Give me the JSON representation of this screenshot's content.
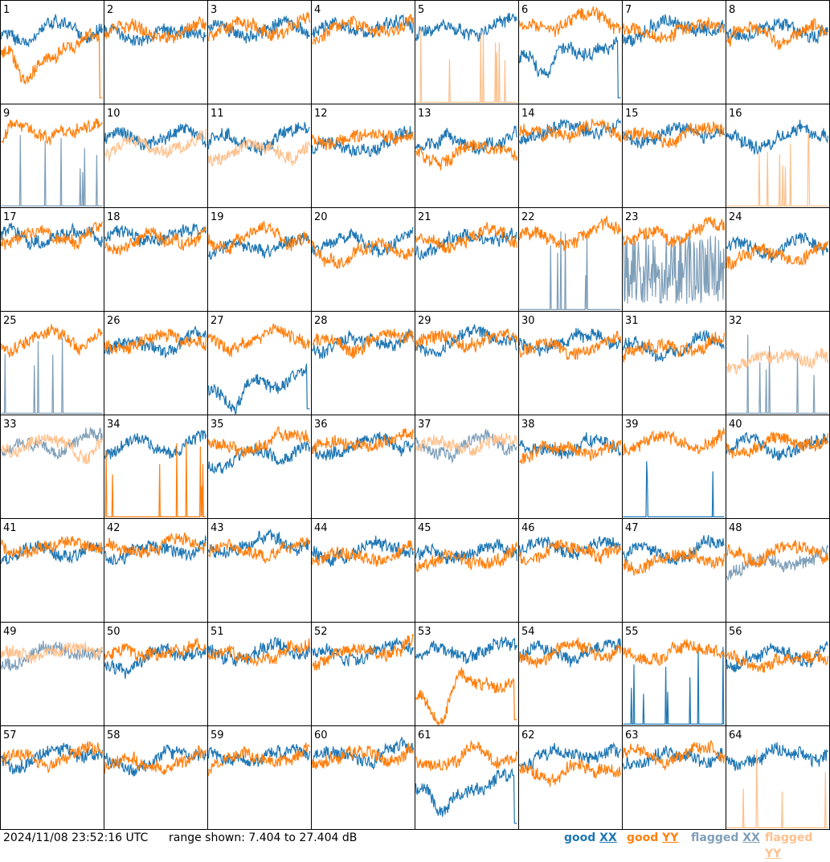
{
  "footer": {
    "timestamp": "2024/11/08 23:52:16 UTC",
    "range_text": "range shown: 7.404 to 27.404 dB"
  },
  "legend": [
    {
      "key": "good_xx",
      "word": "good",
      "pol": "XX",
      "color": "#1f77b4"
    },
    {
      "key": "good_yy",
      "word": "good",
      "pol": "YY",
      "color": "#ff7f0e"
    },
    {
      "key": "flagged_xx",
      "word": "flagged",
      "pol": "XX",
      "color": "#7f9fb9"
    },
    {
      "key": "flagged_yy",
      "word": "flagged",
      "pol": "YY",
      "color": "#ffc08c"
    }
  ],
  "chart_data": {
    "type": "line",
    "layout": {
      "rows": 8,
      "cols": 8
    },
    "ylim": [
      7.404,
      27.404
    ],
    "units": "dB",
    "series_names": [
      "XX",
      "YY"
    ],
    "panels": [
      {
        "n": 1,
        "xx": "good",
        "yy": "good",
        "xx_shape": "wave",
        "yy_shape": "dip",
        "xx_level": 0.72,
        "yy_level": 0.55
      },
      {
        "n": 2,
        "xx": "good",
        "yy": "good",
        "xx_shape": "wave",
        "yy_shape": "wave",
        "xx_level": 0.72,
        "yy_level": 0.72
      },
      {
        "n": 3,
        "xx": "good",
        "yy": "good",
        "xx_shape": "wave",
        "yy_shape": "wave",
        "xx_level": 0.72,
        "yy_level": 0.74
      },
      {
        "n": 4,
        "xx": "good",
        "yy": "good",
        "xx_shape": "wave",
        "yy_shape": "wave",
        "xx_level": 0.74,
        "yy_level": 0.73
      },
      {
        "n": 5,
        "xx": "good",
        "yy": "flagged",
        "xx_shape": "wave",
        "yy_shape": "spikes",
        "xx_level": 0.73,
        "yy_level": 0.0
      },
      {
        "n": 6,
        "xx": "good",
        "yy": "good",
        "xx_shape": "dip",
        "yy_shape": "wave",
        "xx_level": 0.55,
        "yy_level": 0.78
      },
      {
        "n": 7,
        "xx": "good",
        "yy": "good",
        "xx_shape": "wave",
        "yy_shape": "wave",
        "xx_level": 0.72,
        "yy_level": 0.73
      },
      {
        "n": 8,
        "xx": "good",
        "yy": "good",
        "xx_shape": "wave",
        "yy_shape": "wave",
        "xx_level": 0.7,
        "yy_level": 0.67
      },
      {
        "n": 9,
        "xx": "flagged",
        "yy": "good",
        "xx_shape": "spikes",
        "yy_shape": "wave",
        "xx_level": 0.0,
        "yy_level": 0.75
      },
      {
        "n": 10,
        "xx": "good",
        "yy": "flagged",
        "xx_shape": "wave",
        "yy_shape": "wave",
        "xx_level": 0.66,
        "yy_level": 0.58
      },
      {
        "n": 11,
        "xx": "good",
        "yy": "flagged",
        "xx_shape": "wave",
        "yy_shape": "wave",
        "xx_level": 0.66,
        "yy_level": 0.56
      },
      {
        "n": 12,
        "xx": "good",
        "yy": "good",
        "xx_shape": "wave",
        "yy_shape": "wave",
        "xx_level": 0.62,
        "yy_level": 0.7
      },
      {
        "n": 13,
        "xx": "good",
        "yy": "good",
        "xx_shape": "wave",
        "yy_shape": "wave",
        "xx_level": 0.65,
        "yy_level": 0.55
      },
      {
        "n": 14,
        "xx": "good",
        "yy": "good",
        "xx_shape": "wave",
        "yy_shape": "wave",
        "xx_level": 0.74,
        "yy_level": 0.75
      },
      {
        "n": 15,
        "xx": "good",
        "yy": "good",
        "xx_shape": "wave",
        "yy_shape": "wave",
        "xx_level": 0.72,
        "yy_level": 0.72
      },
      {
        "n": 16,
        "xx": "good",
        "yy": "flagged",
        "xx_shape": "wave",
        "yy_shape": "spikes",
        "xx_level": 0.72,
        "yy_level": 0.0
      },
      {
        "n": 17,
        "xx": "good",
        "yy": "good",
        "xx_shape": "wave",
        "yy_shape": "wave",
        "xx_level": 0.72,
        "yy_level": 0.73
      },
      {
        "n": 18,
        "xx": "good",
        "yy": "good",
        "xx_shape": "wave",
        "yy_shape": "wave",
        "xx_level": 0.72,
        "yy_level": 0.72
      },
      {
        "n": 19,
        "xx": "good",
        "yy": "good",
        "xx_shape": "wave",
        "yy_shape": "wave",
        "xx_level": 0.6,
        "yy_level": 0.72
      },
      {
        "n": 20,
        "xx": "good",
        "yy": "good",
        "xx_shape": "wave",
        "yy_shape": "wave",
        "xx_level": 0.68,
        "yy_level": 0.62
      },
      {
        "n": 21,
        "xx": "good",
        "yy": "good",
        "xx_shape": "wave",
        "yy_shape": "wave",
        "xx_level": 0.7,
        "yy_level": 0.72
      },
      {
        "n": 22,
        "xx": "flagged",
        "yy": "good",
        "xx_shape": "spikes",
        "yy_shape": "wave",
        "xx_level": 0.0,
        "yy_level": 0.75
      },
      {
        "n": 23,
        "xx": "flagged",
        "yy": "good",
        "xx_shape": "noise",
        "yy_shape": "wave",
        "xx_level": 0.4,
        "yy_level": 0.75
      },
      {
        "n": 24,
        "xx": "good",
        "yy": "good",
        "xx_shape": "wave",
        "yy_shape": "wave",
        "xx_level": 0.64,
        "yy_level": 0.58
      },
      {
        "n": 25,
        "xx": "flagged",
        "yy": "good",
        "xx_shape": "spikes",
        "yy_shape": "wave",
        "xx_level": 0.0,
        "yy_level": 0.75
      },
      {
        "n": 26,
        "xx": "good",
        "yy": "good",
        "xx_shape": "wave",
        "yy_shape": "wave",
        "xx_level": 0.72,
        "yy_level": 0.73
      },
      {
        "n": 27,
        "xx": "good",
        "yy": "good",
        "xx_shape": "dip",
        "yy_shape": "wave",
        "xx_level": 0.35,
        "yy_level": 0.75
      },
      {
        "n": 28,
        "xx": "good",
        "yy": "good",
        "xx_shape": "wave",
        "yy_shape": "wave",
        "xx_level": 0.72,
        "yy_level": 0.72
      },
      {
        "n": 29,
        "xx": "good",
        "yy": "good",
        "xx_shape": "wave",
        "yy_shape": "wave",
        "xx_level": 0.72,
        "yy_level": 0.72
      },
      {
        "n": 30,
        "xx": "good",
        "yy": "good",
        "xx_shape": "wave",
        "yy_shape": "wave",
        "xx_level": 0.7,
        "yy_level": 0.68
      },
      {
        "n": 31,
        "xx": "good",
        "yy": "good",
        "xx_shape": "wave",
        "yy_shape": "wave",
        "xx_level": 0.68,
        "yy_level": 0.66
      },
      {
        "n": 32,
        "xx": "flagged",
        "yy": "flagged",
        "xx_shape": "spikes",
        "yy_shape": "wave",
        "xx_level": 0.0,
        "yy_level": 0.55
      },
      {
        "n": 33,
        "xx": "flagged",
        "yy": "flagged",
        "xx_shape": "wave",
        "yy_shape": "wave",
        "xx_level": 0.72,
        "yy_level": 0.73
      },
      {
        "n": 34,
        "xx": "good",
        "yy": "good",
        "xx_shape": "wave",
        "yy_shape": "spikes",
        "xx_level": 0.72,
        "yy_level": 0.0
      },
      {
        "n": 35,
        "xx": "good",
        "yy": "good",
        "xx_shape": "wave",
        "yy_shape": "wave",
        "xx_level": 0.6,
        "yy_level": 0.72
      },
      {
        "n": 36,
        "xx": "good",
        "yy": "good",
        "xx_shape": "wave",
        "yy_shape": "wave",
        "xx_level": 0.72,
        "yy_level": 0.72
      },
      {
        "n": 37,
        "xx": "flagged",
        "yy": "flagged",
        "xx_shape": "wave",
        "yy_shape": "wave",
        "xx_level": 0.72,
        "yy_level": 0.73
      },
      {
        "n": 38,
        "xx": "good",
        "yy": "good",
        "xx_shape": "wave",
        "yy_shape": "wave",
        "xx_level": 0.7,
        "yy_level": 0.68
      },
      {
        "n": 39,
        "xx": "good",
        "yy": "good",
        "xx_shape": "spikes",
        "yy_shape": "wave",
        "xx_level": 0.0,
        "yy_level": 0.75
      },
      {
        "n": 40,
        "xx": "good",
        "yy": "good",
        "xx_shape": "wave",
        "yy_shape": "wave",
        "xx_level": 0.72,
        "yy_level": 0.72
      },
      {
        "n": 41,
        "xx": "good",
        "yy": "good",
        "xx_shape": "wave",
        "yy_shape": "wave",
        "xx_level": 0.72,
        "yy_level": 0.72
      },
      {
        "n": 42,
        "xx": "good",
        "yy": "good",
        "xx_shape": "wave",
        "yy_shape": "wave",
        "xx_level": 0.72,
        "yy_level": 0.72
      },
      {
        "n": 43,
        "xx": "good",
        "yy": "good",
        "xx_shape": "wave",
        "yy_shape": "wave",
        "xx_level": 0.72,
        "yy_level": 0.72
      },
      {
        "n": 44,
        "xx": "good",
        "yy": "good",
        "xx_shape": "wave",
        "yy_shape": "wave",
        "xx_level": 0.68,
        "yy_level": 0.66
      },
      {
        "n": 45,
        "xx": "good",
        "yy": "good",
        "xx_shape": "wave",
        "yy_shape": "wave",
        "xx_level": 0.64,
        "yy_level": 0.62
      },
      {
        "n": 46,
        "xx": "good",
        "yy": "good",
        "xx_shape": "wave",
        "yy_shape": "wave",
        "xx_level": 0.72,
        "yy_level": 0.7
      },
      {
        "n": 47,
        "xx": "good",
        "yy": "good",
        "xx_shape": "wave",
        "yy_shape": "wave",
        "xx_level": 0.7,
        "yy_level": 0.62
      },
      {
        "n": 48,
        "xx": "flagged",
        "yy": "good",
        "xx_shape": "wave",
        "yy_shape": "wave",
        "xx_level": 0.55,
        "yy_level": 0.7
      },
      {
        "n": 49,
        "xx": "flagged",
        "yy": "flagged",
        "xx_shape": "wave",
        "yy_shape": "wave",
        "xx_level": 0.7,
        "yy_level": 0.72
      },
      {
        "n": 50,
        "xx": "good",
        "yy": "good",
        "xx_shape": "wave",
        "yy_shape": "wave",
        "xx_level": 0.66,
        "yy_level": 0.72
      },
      {
        "n": 51,
        "xx": "good",
        "yy": "good",
        "xx_shape": "wave",
        "yy_shape": "wave",
        "xx_level": 0.72,
        "yy_level": 0.72
      },
      {
        "n": 52,
        "xx": "good",
        "yy": "good",
        "xx_shape": "wave",
        "yy_shape": "wave",
        "xx_level": 0.72,
        "yy_level": 0.7
      },
      {
        "n": 53,
        "xx": "good",
        "yy": "good",
        "xx_shape": "wave",
        "yy_shape": "dip",
        "xx_level": 0.72,
        "yy_level": 0.4
      },
      {
        "n": 54,
        "xx": "good",
        "yy": "good",
        "xx_shape": "wave",
        "yy_shape": "wave",
        "xx_level": 0.72,
        "yy_level": 0.72
      },
      {
        "n": 55,
        "xx": "good",
        "yy": "good",
        "xx_shape": "spikes",
        "yy_shape": "wave",
        "xx_level": 0.0,
        "yy_level": 0.72
      },
      {
        "n": 56,
        "xx": "good",
        "yy": "good",
        "xx_shape": "wave",
        "yy_shape": "wave",
        "xx_level": 0.68,
        "yy_level": 0.66
      },
      {
        "n": 57,
        "xx": "good",
        "yy": "good",
        "xx_shape": "wave",
        "yy_shape": "wave",
        "xx_level": 0.72,
        "yy_level": 0.72
      },
      {
        "n": 58,
        "xx": "good",
        "yy": "good",
        "xx_shape": "wave",
        "yy_shape": "wave",
        "xx_level": 0.7,
        "yy_level": 0.64
      },
      {
        "n": 59,
        "xx": "good",
        "yy": "good",
        "xx_shape": "wave",
        "yy_shape": "wave",
        "xx_level": 0.7,
        "yy_level": 0.68
      },
      {
        "n": 60,
        "xx": "good",
        "yy": "good",
        "xx_shape": "wave",
        "yy_shape": "wave",
        "xx_level": 0.72,
        "yy_level": 0.72
      },
      {
        "n": 61,
        "xx": "good",
        "yy": "good",
        "xx_shape": "dip",
        "yy_shape": "wave",
        "xx_level": 0.45,
        "yy_level": 0.72
      },
      {
        "n": 62,
        "xx": "good",
        "yy": "good",
        "xx_shape": "wave",
        "yy_shape": "wave",
        "xx_level": 0.7,
        "yy_level": 0.58
      },
      {
        "n": 63,
        "xx": "good",
        "yy": "good",
        "xx_shape": "wave",
        "yy_shape": "wave",
        "xx_level": 0.72,
        "yy_level": 0.72
      },
      {
        "n": 64,
        "xx": "good",
        "yy": "flagged",
        "xx_shape": "wave",
        "yy_shape": "spikes",
        "xx_level": 0.72,
        "yy_level": 0.0
      }
    ]
  }
}
